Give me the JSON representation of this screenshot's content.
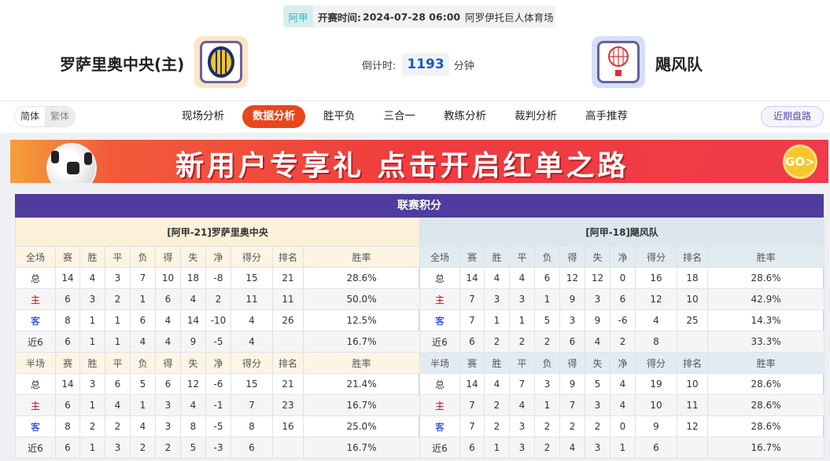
{
  "match": {
    "league": "阿甲",
    "time_label": "开赛时间:",
    "time": "2024-07-28 06:00",
    "venue": "阿罗伊托巨人体育场",
    "home": "罗萨里奥中央(主)",
    "away": "飓风队",
    "countdown_label": "倒计时:",
    "countdown": "1193",
    "countdown_unit": "分钟"
  },
  "lang": {
    "simplified": "简体",
    "traditional": "繁体"
  },
  "nav": {
    "tabs": [
      "现场分析",
      "数据分析",
      "胜平负",
      "三合一",
      "教练分析",
      "裁判分析",
      "高手推荐"
    ],
    "active": "数据分析",
    "recent": "近期盘路"
  },
  "banner": {
    "text": "新用户专享礼 点击开启红单之路",
    "go": "GO>"
  },
  "standings": {
    "title": "联赛积分",
    "cols": [
      "赛",
      "胜",
      "平",
      "负",
      "得",
      "失",
      "净",
      "得分",
      "排名",
      "胜率"
    ],
    "sides": [
      {
        "team": "[阿甲-21]罗萨里奥中央",
        "full": {
          "label": "全场",
          "rows": [
            [
              "总",
              "14",
              "4",
              "3",
              "7",
              "10",
              "18",
              "-8",
              "15",
              "21",
              "28.6%"
            ],
            [
              "主",
              "6",
              "3",
              "2",
              "1",
              "6",
              "4",
              "2",
              "11",
              "11",
              "50.0%"
            ],
            [
              "客",
              "8",
              "1",
              "1",
              "6",
              "4",
              "14",
              "-10",
              "4",
              "26",
              "12.5%"
            ],
            [
              "近6",
              "6",
              "1",
              "1",
              "4",
              "4",
              "9",
              "-5",
              "4",
              "",
              "16.7%"
            ]
          ]
        },
        "half": {
          "label": "半场",
          "rows": [
            [
              "总",
              "14",
              "3",
              "6",
              "5",
              "6",
              "12",
              "-6",
              "15",
              "21",
              "21.4%"
            ],
            [
              "主",
              "6",
              "1",
              "4",
              "1",
              "3",
              "4",
              "-1",
              "7",
              "23",
              "16.7%"
            ],
            [
              "客",
              "8",
              "2",
              "2",
              "4",
              "3",
              "8",
              "-5",
              "8",
              "16",
              "25.0%"
            ],
            [
              "近6",
              "6",
              "1",
              "3",
              "2",
              "2",
              "5",
              "-3",
              "6",
              "",
              "16.7%"
            ]
          ]
        }
      },
      {
        "team": "[阿甲-18]飓风队",
        "full": {
          "label": "全场",
          "rows": [
            [
              "总",
              "14",
              "4",
              "4",
              "6",
              "12",
              "12",
              "0",
              "16",
              "18",
              "28.6%"
            ],
            [
              "主",
              "7",
              "3",
              "3",
              "1",
              "9",
              "3",
              "6",
              "12",
              "10",
              "42.9%"
            ],
            [
              "客",
              "7",
              "1",
              "1",
              "5",
              "3",
              "9",
              "-6",
              "4",
              "25",
              "14.3%"
            ],
            [
              "近6",
              "6",
              "2",
              "2",
              "2",
              "6",
              "4",
              "2",
              "8",
              "",
              "33.3%"
            ]
          ]
        },
        "half": {
          "label": "半场",
          "rows": [
            [
              "总",
              "14",
              "4",
              "7",
              "3",
              "9",
              "5",
              "4",
              "19",
              "10",
              "28.6%"
            ],
            [
              "主",
              "7",
              "2",
              "4",
              "1",
              "7",
              "3",
              "4",
              "10",
              "11",
              "28.6%"
            ],
            [
              "客",
              "7",
              "2",
              "3",
              "2",
              "2",
              "2",
              "0",
              "9",
              "12",
              "28.6%"
            ],
            [
              "近6",
              "6",
              "1",
              "3",
              "2",
              "4",
              "3",
              "1",
              "6",
              "",
              "16.7%"
            ]
          ]
        }
      }
    ]
  },
  "colors": {
    "accent": "#e8461c",
    "title_bar": "#4f3c9c",
    "home_red": "#d40000",
    "away_blue": "#0026c8"
  }
}
